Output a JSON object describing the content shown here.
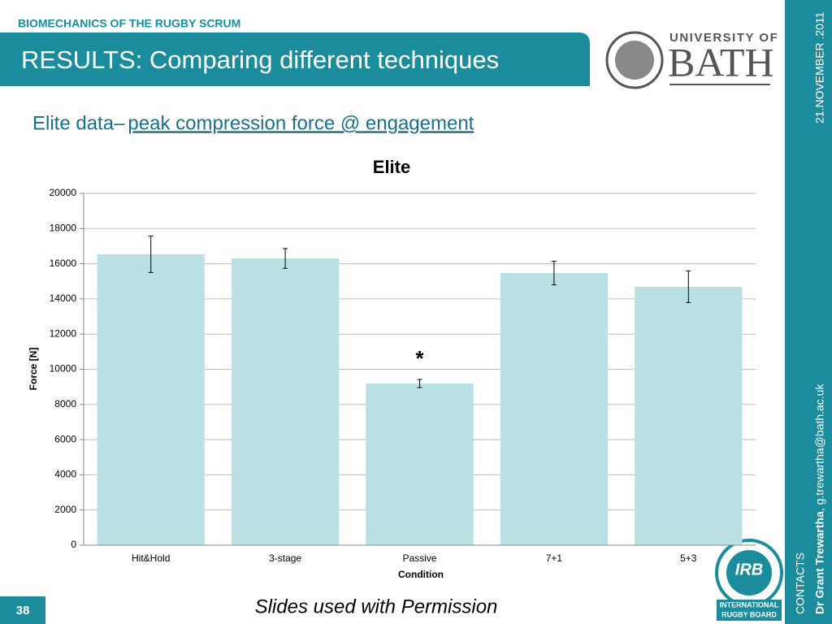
{
  "slide": {
    "header_label": "BIOMECHANICS OF THE RUGBY SCRUM",
    "title": "RESULTS: Comparing different techniques",
    "subtitle_lead": "Elite data– ",
    "subtitle_link": "peak compression force @ engagement",
    "logo_top": "UNIVERSITY OF",
    "logo_main": "BATH",
    "date": "21.NOVEMBER .2011",
    "contacts_label": "CONTACTS",
    "contact_name": "Dr Grant Trewartha",
    "contact_email": ", g.trewartha@bath.ac.uk",
    "page_number": "38",
    "footer_note": "Slides used with Permission",
    "irb_logo": "IRB",
    "irb_line1": "INTERNATIONAL",
    "irb_line2": "RUGBY BOARD"
  },
  "chart_data": {
    "type": "bar",
    "title": "Elite",
    "x_label": "Condition",
    "y_label": "Force [N]",
    "categories": [
      "Hit&Hold",
      "3-stage",
      "Passive",
      "7+1",
      "5+3"
    ],
    "values": [
      16540,
      16300,
      9190,
      15470,
      14690
    ],
    "errors": [
      1040,
      560,
      230,
      670,
      900
    ],
    "color": "#b9e0e3",
    "annotation": "*",
    "ylim": [
      0,
      20000
    ],
    "yticks": [
      0,
      2000,
      4000,
      6000,
      8000,
      10000,
      12000,
      14000,
      16000,
      18000,
      20000
    ],
    "grid": true
  }
}
